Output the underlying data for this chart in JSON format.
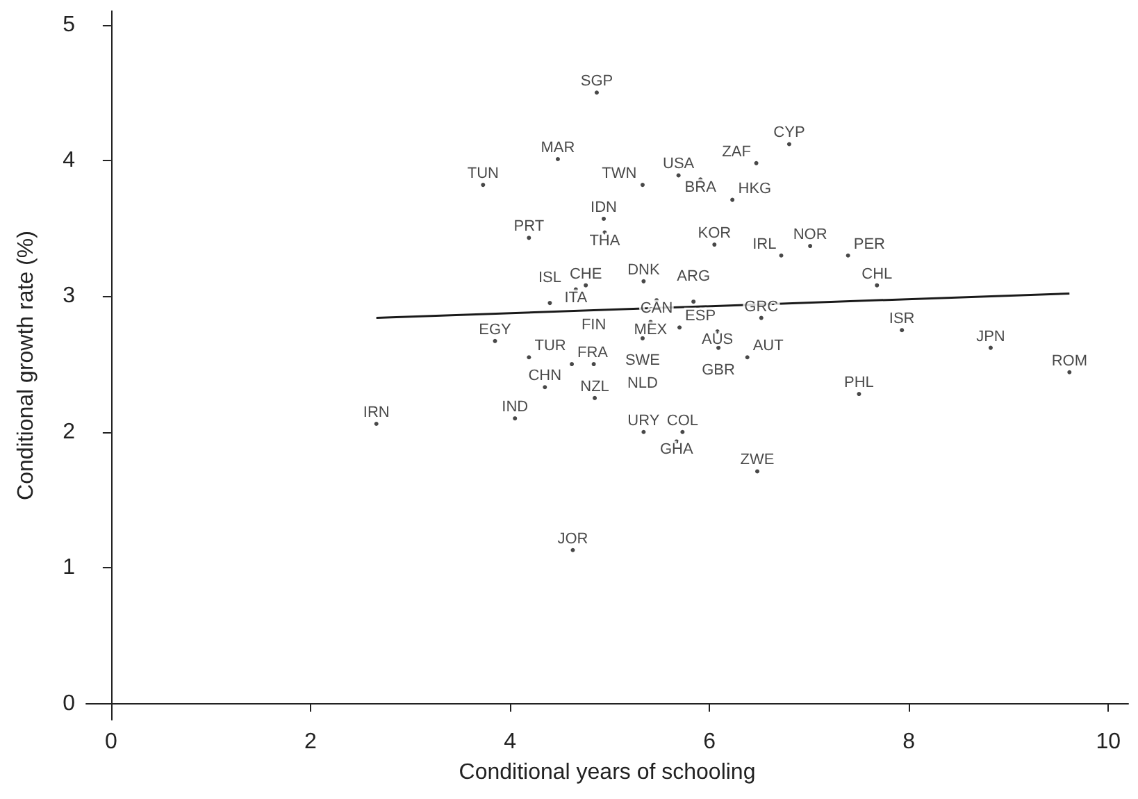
{
  "chart_data": {
    "type": "scatter",
    "xlabel": "Conditional years of schooling",
    "ylabel": "Conditional growth rate (%)",
    "xlim": [
      -0.25,
      10.2
    ],
    "xticks": [
      0,
      2,
      4,
      6,
      8,
      10
    ],
    "ylim": [
      -0.12,
      5.1
    ],
    "yticks": [
      0,
      1,
      2,
      3,
      4,
      5
    ],
    "grid": false,
    "marker": "none",
    "series": [
      {
        "color": "#1a1a1a",
        "x": [
          4.87,
          6.8,
          4.48,
          6.47,
          5.69,
          5.91,
          3.73,
          5.33,
          6.23,
          4.94,
          4.95,
          4.19,
          6.05,
          7.01,
          6.72,
          7.39,
          5.34,
          7.68,
          4.76,
          4.66,
          5.47,
          5.84,
          4.4,
          5.41,
          6.52,
          7.93,
          5.7,
          6.08,
          3.85,
          5.33,
          8.82,
          6.09,
          4.19,
          5.33,
          6.38,
          9.61,
          7.5,
          4.35,
          4.85,
          2.66,
          4.05,
          5.34,
          5.73,
          5.67,
          6.48,
          4.63,
          4.62,
          4.84
        ],
        "values": [
          4.5,
          4.12,
          4.01,
          3.98,
          3.89,
          3.86,
          3.82,
          3.82,
          3.71,
          3.57,
          3.47,
          3.43,
          3.38,
          3.37,
          3.3,
          3.3,
          3.11,
          3.08,
          3.08,
          3.05,
          2.97,
          2.96,
          2.95,
          2.81,
          2.84,
          2.75,
          2.77,
          2.74,
          2.67,
          2.69,
          2.62,
          2.62,
          2.55,
          2.52,
          2.55,
          2.44,
          2.28,
          2.33,
          2.25,
          2.06,
          2.1,
          2.0,
          2.0,
          1.93,
          1.71,
          1.13,
          2.5,
          2.5
        ],
        "value_labels": [
          "SGP",
          "CYP",
          "MAR",
          "ZAF",
          "USA",
          "BRA",
          "TUN",
          "TWN",
          "HKG",
          "IDN",
          "THA",
          "PRT",
          "KOR",
          "NOR",
          "IRL",
          "PER",
          "DNK",
          "CHL",
          "CHE",
          "ITA",
          "CAN",
          "ARG",
          "ISL",
          "MEX",
          "GRC",
          "ISR",
          "ESP",
          "AUS",
          "EGY",
          "SWE",
          "JPN",
          "GBR",
          "TUR",
          "NLD",
          "AUT",
          "ROM",
          "PHL",
          "CHN",
          "NZL",
          "IRN",
          "IND",
          "URY",
          "COL",
          "GHA",
          "ZWE",
          "JOR",
          "FRA",
          "FIN"
        ]
      },
      {
        "type": "line",
        "color": "#1a1a1a",
        "x": [
          2.66,
          9.61
        ],
        "values": [
          2.84,
          3.02
        ]
      }
    ]
  }
}
